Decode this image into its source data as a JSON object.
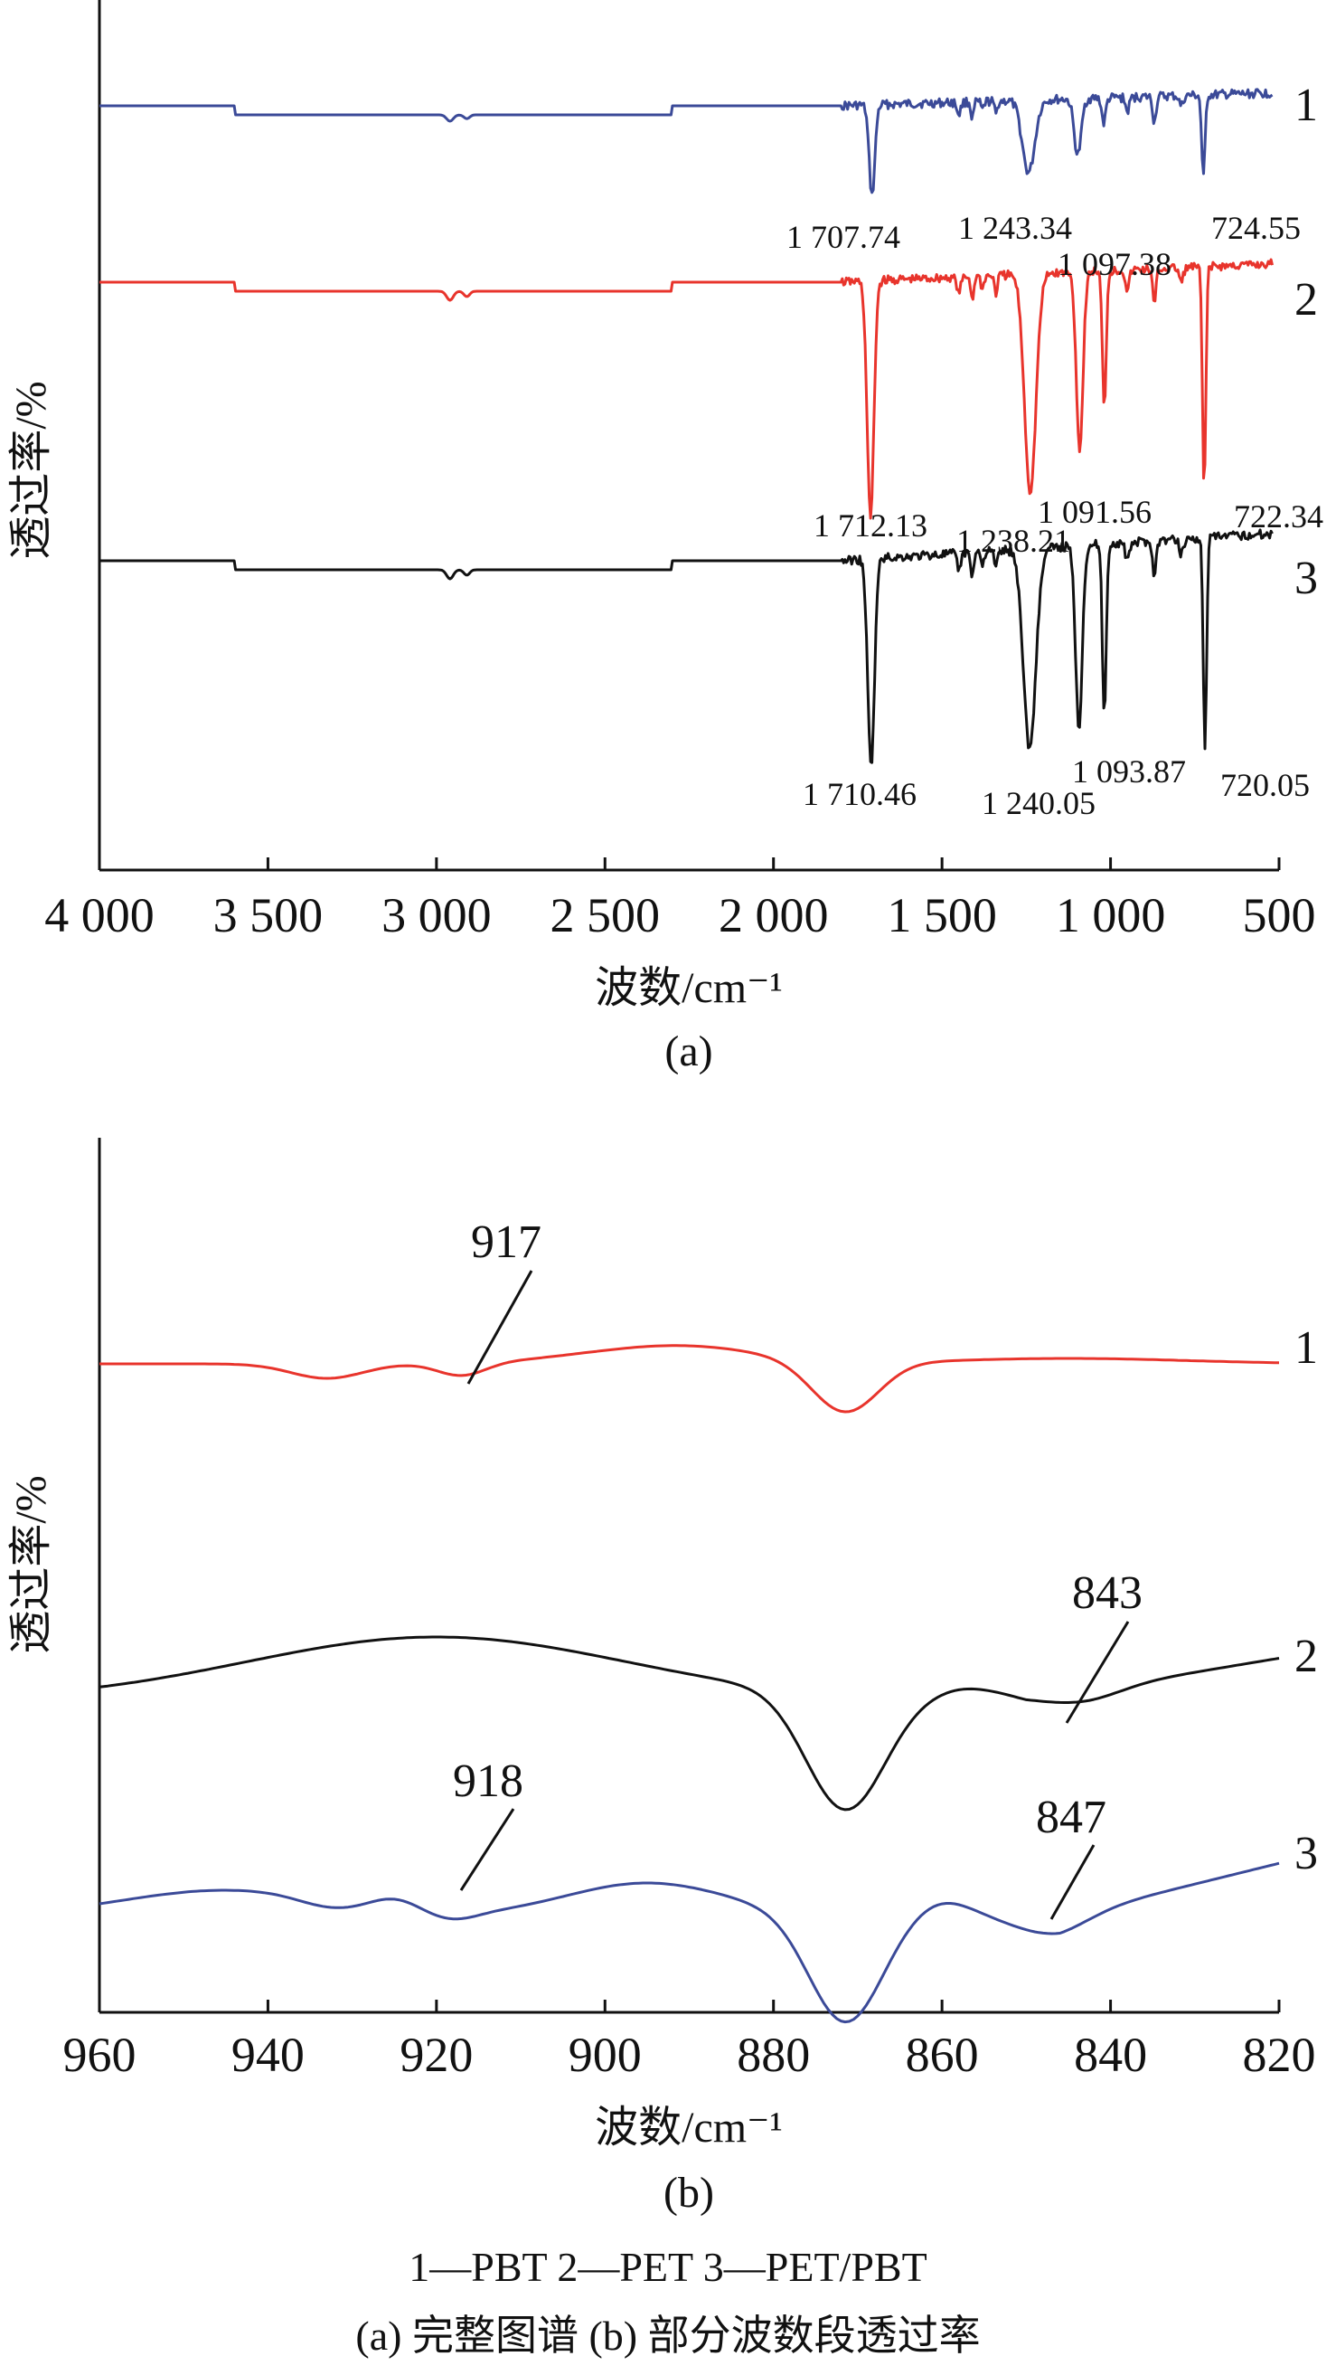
{
  "chart_data": [
    {
      "type": "line",
      "panel_label": "(a)",
      "xlabel": "波数/cm⁻¹",
      "ylabel": "透过率/%",
      "xlim": [
        4000,
        500
      ],
      "x_ticks": [
        4000,
        3500,
        3000,
        2500,
        2000,
        1500,
        1000,
        500
      ],
      "x_tick_labels": [
        "4 000",
        "3 500",
        "3 000",
        "2 500",
        "2 000",
        "1 500",
        "1 000",
        "500"
      ],
      "series": [
        {
          "name": "1",
          "color": "#3b4a98",
          "peaks": [
            "1 707.74",
            "1 243.34",
            "1 097.38",
            "724.55"
          ]
        },
        {
          "name": "2",
          "color": "#e8342c",
          "peaks": [
            "1 712.13",
            "1 238.21",
            "1 091.56",
            "722.34"
          ]
        },
        {
          "name": "3",
          "color": "#111111",
          "peaks": [
            "1 710.46",
            "1 240.05",
            "1 093.87",
            "720.05"
          ]
        }
      ]
    },
    {
      "type": "line",
      "panel_label": "(b)",
      "xlabel": "波数/cm⁻¹",
      "ylabel": "透过率/%",
      "xlim": [
        960,
        820
      ],
      "x_ticks": [
        960,
        940,
        920,
        900,
        880,
        860,
        840,
        820
      ],
      "x_tick_labels": [
        "960",
        "940",
        "920",
        "900",
        "880",
        "860",
        "840",
        "820"
      ],
      "series": [
        {
          "name": "1",
          "color": "#e8342c",
          "annotations": [
            "917"
          ]
        },
        {
          "name": "2",
          "color": "#111111",
          "annotations": [
            "843"
          ]
        },
        {
          "name": "3",
          "color": "#3b4a98",
          "annotations": [
            "918",
            "847"
          ]
        }
      ]
    }
  ],
  "legend_line": "1—PBT    2—PET    3—PET/PBT",
  "caption_line": "(a) 完整图谱    (b) 部分波数段透过率"
}
